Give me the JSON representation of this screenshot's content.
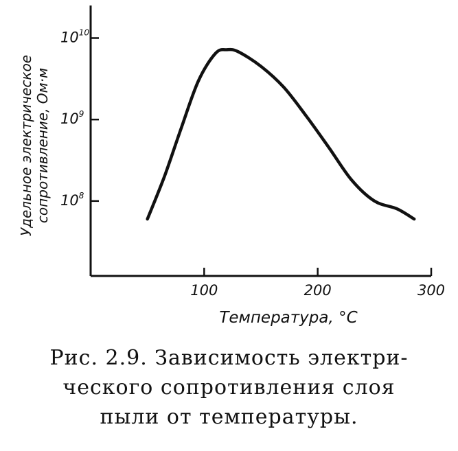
{
  "chart_data": {
    "type": "line",
    "xlabel": "Температура, °С",
    "ylabel_lines": [
      "Удельное электрическое",
      "сопротивление, Ом·м"
    ],
    "x_ticks": [
      100,
      200,
      300
    ],
    "y_ticks": [
      {
        "value": 8,
        "base": "10",
        "exp": "8"
      },
      {
        "value": 9,
        "base": "10",
        "exp": "9"
      },
      {
        "value": 10,
        "base": "10",
        "exp": "10"
      }
    ],
    "xlim": [
      0,
      300
    ],
    "y_scale": "log",
    "ylim_log10": [
      7.08,
      10.4
    ],
    "grid": false,
    "series": [
      {
        "x": [
          50,
          65,
          80,
          95,
          110,
          120,
          130,
          150,
          170,
          190,
          210,
          230,
          250,
          270,
          285
        ],
        "y": [
          60000000.0,
          200000000.0,
          800000000.0,
          3000000000.0,
          6500000000.0,
          7200000000.0,
          6800000000.0,
          4500000000.0,
          2500000000.0,
          1100000000.0,
          450000000.0,
          180000000.0,
          100000000.0,
          80000000.0,
          60000000.0
        ]
      }
    ]
  },
  "caption": {
    "line1": "Рис. 2.9. Зависимость электри-",
    "line2": "ческого сопротивления слоя",
    "line3": "пыли от температуры."
  }
}
